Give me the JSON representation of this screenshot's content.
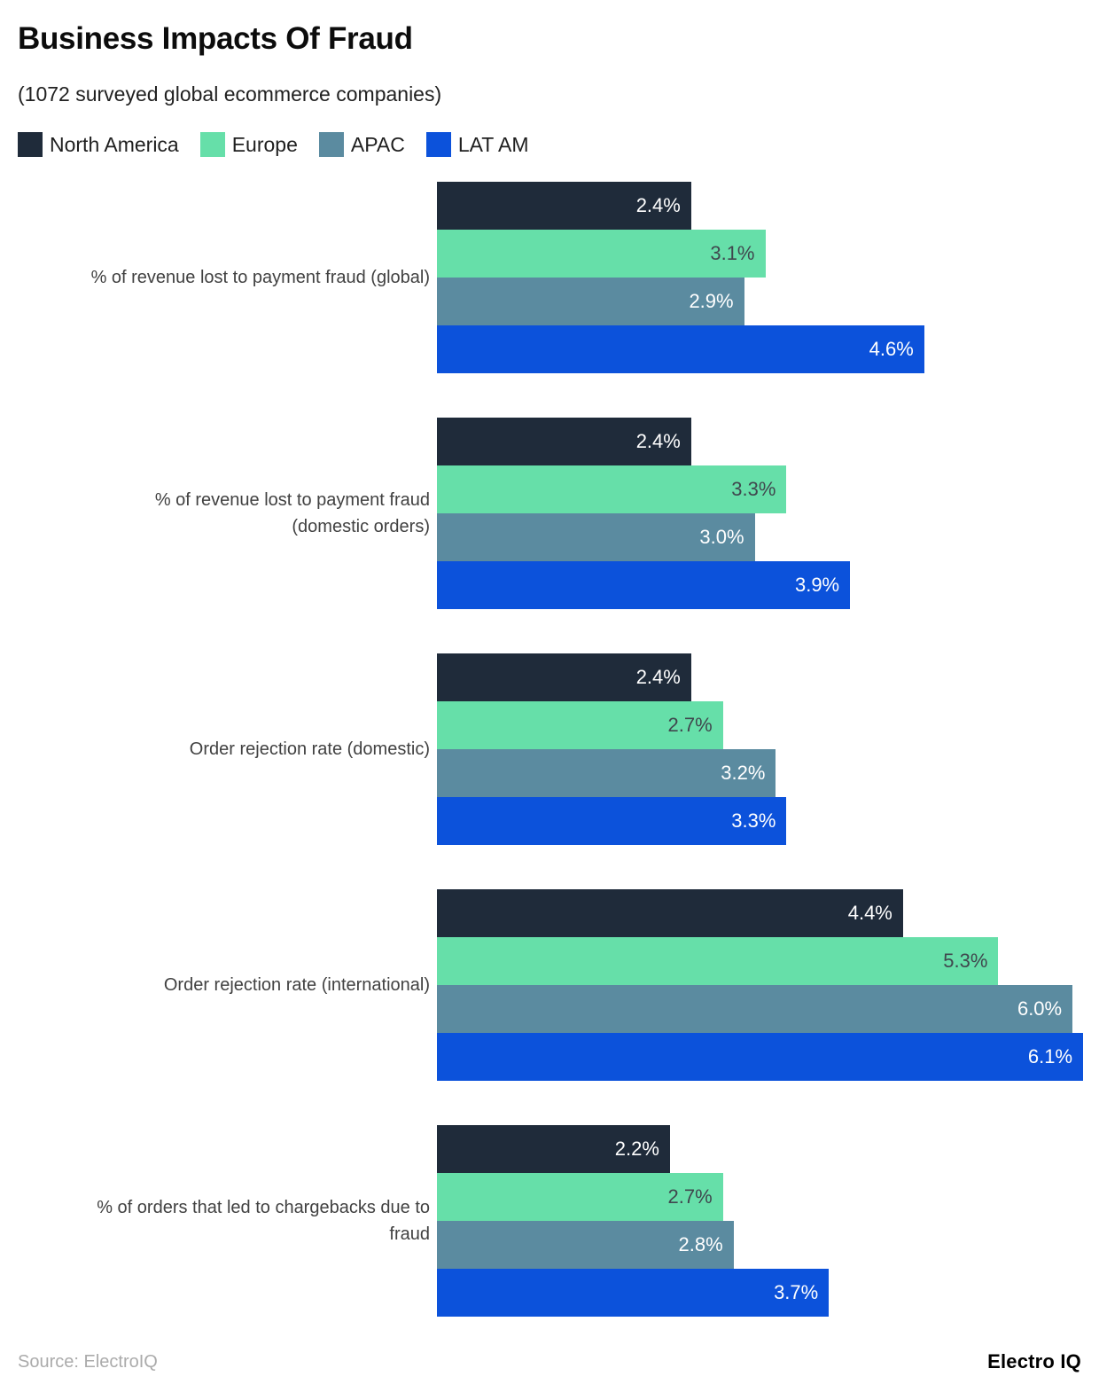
{
  "header": {
    "title": "Business Impacts Of Fraud",
    "subtitle": "(1072 surveyed global ecommerce companies)"
  },
  "footer": {
    "source": "Source: ElectroIQ",
    "logo": "Electro IQ"
  },
  "chart_data": {
    "type": "bar",
    "orientation": "horizontal",
    "title": "Business Impacts Of Fraud",
    "subtitle": "(1072 surveyed global ecommerce companies)",
    "value_suffix": "%",
    "xlim": [
      0,
      6.25
    ],
    "grid": false,
    "legend_position": "top",
    "categories": [
      {
        "lines": [
          "% of revenue lost to payment fraud (global)"
        ]
      },
      {
        "lines": [
          "% of revenue lost to payment fraud",
          "(domestic orders)"
        ]
      },
      {
        "lines": [
          "Order rejection rate (domestic)"
        ]
      },
      {
        "lines": [
          "Order rejection rate (international)"
        ]
      },
      {
        "lines": [
          "% of orders that led to chargebacks due to",
          "fraud"
        ]
      }
    ],
    "series": [
      {
        "name": "North America",
        "color": "#1F2B3A",
        "label_color": "#FFFFFF",
        "values": [
          2.4,
          2.4,
          2.4,
          4.4,
          2.2
        ]
      },
      {
        "name": "Europe",
        "color": "#66DFA9",
        "label_color": "#40474E",
        "values": [
          3.1,
          3.3,
          2.7,
          5.3,
          2.7
        ]
      },
      {
        "name": "APAC",
        "color": "#5B8BA0",
        "label_color": "#FFFFFF",
        "values": [
          2.9,
          3.0,
          3.2,
          6.0,
          2.8
        ]
      },
      {
        "name": "LAT AM",
        "color": "#0C52DB",
        "label_color": "#FFFFFF",
        "values": [
          4.6,
          3.9,
          3.3,
          6.1,
          3.7
        ]
      }
    ]
  }
}
